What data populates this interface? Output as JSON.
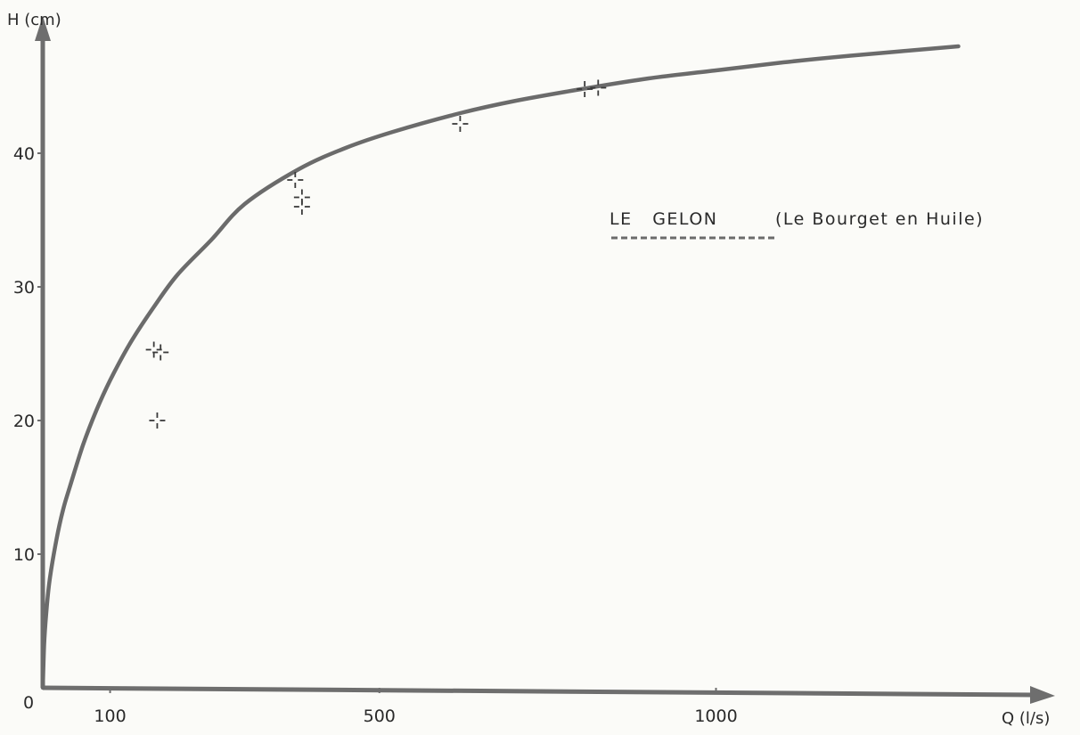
{
  "chart_data": {
    "type": "scatter",
    "title": "",
    "xlabel": "Q (l/s)",
    "ylabel": "H (cm)",
    "xlim": [
      0,
      1400
    ],
    "ylim": [
      0,
      50
    ],
    "origin_label": "0",
    "x_ticks": [
      {
        "value": 100,
        "label": "100"
      },
      {
        "value": 500,
        "label": "500"
      },
      {
        "value": 1000,
        "label": "1000"
      }
    ],
    "y_ticks": [
      {
        "value": 10,
        "label": "10"
      },
      {
        "value": 20,
        "label": "20"
      },
      {
        "value": 30,
        "label": "30"
      },
      {
        "value": 40,
        "label": "40"
      }
    ],
    "grid": false,
    "legend": {
      "river": "LE   GELON",
      "place": "(Le Bourget en Huile)",
      "position": "right",
      "line_color": "#6b6b6b",
      "line_style": "dashed"
    },
    "series": [
      {
        "type": "line",
        "color": "#6b6b6b",
        "x": [
          0,
          2,
          5,
          10,
          20,
          30,
          40,
          60,
          80,
          100,
          130,
          165,
          200,
          250,
          300,
          380,
          450,
          520,
          620,
          700,
          800,
          900,
          1000,
          1100,
          1200,
          1360
        ],
        "y": [
          0,
          3.2,
          5.5,
          8.0,
          11.0,
          13.3,
          15.0,
          18.2,
          20.8,
          23.0,
          25.8,
          28.5,
          30.9,
          33.5,
          36.2,
          38.8,
          40.4,
          41.6,
          43.0,
          43.9,
          44.8,
          45.6,
          46.2,
          46.8,
          47.3,
          48.0
        ]
      },
      {
        "type": "scatter",
        "marker": "cross",
        "color": "#3a3a3a",
        "points": [
          {
            "x": 165,
            "y": 25.3
          },
          {
            "x": 175,
            "y": 25.1
          },
          {
            "x": 170,
            "y": 20.0
          },
          {
            "x": 375,
            "y": 38.0
          },
          {
            "x": 385,
            "y": 36.7
          },
          {
            "x": 385,
            "y": 36.0
          },
          {
            "x": 620,
            "y": 42.2
          },
          {
            "x": 805,
            "y": 44.8
          },
          {
            "x": 825,
            "y": 44.9
          }
        ]
      }
    ]
  }
}
